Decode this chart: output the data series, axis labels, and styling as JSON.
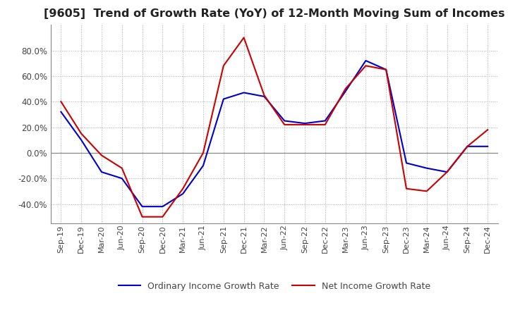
{
  "title": "[9605]  Trend of Growth Rate (YoY) of 12-Month Moving Sum of Incomes",
  "title_fontsize": 11.5,
  "ylim": [
    -55,
    100
  ],
  "yticks": [
    -40,
    -20,
    0,
    20,
    40,
    60,
    80
  ],
  "background_color": "#ffffff",
  "grid_color": "#aaaaaa",
  "ordinary_color": "#0000cc",
  "net_color": "#cc0000",
  "legend_labels": [
    "Ordinary Income Growth Rate",
    "Net Income Growth Rate"
  ],
  "x_labels": [
    "Sep-19",
    "Dec-19",
    "Mar-20",
    "Jun-20",
    "Sep-20",
    "Dec-20",
    "Mar-21",
    "Jun-21",
    "Sep-21",
    "Dec-21",
    "Mar-22",
    "Jun-22",
    "Sep-22",
    "Dec-22",
    "Mar-23",
    "Jun-23",
    "Sep-23",
    "Dec-23",
    "Mar-24",
    "Jun-24",
    "Sep-24",
    "Dec-24"
  ],
  "ordinary_income": [
    32,
    10,
    -15,
    -20,
    -42,
    -42,
    -32,
    -10,
    42,
    47,
    44,
    25,
    23,
    25,
    48,
    72,
    65,
    -8,
    -12,
    -15,
    5,
    5
  ],
  "net_income": [
    40,
    15,
    -2,
    -12,
    -50,
    -50,
    -28,
    0,
    68,
    90,
    45,
    22,
    22,
    22,
    50,
    68,
    65,
    -28,
    -30,
    -15,
    5,
    18
  ]
}
